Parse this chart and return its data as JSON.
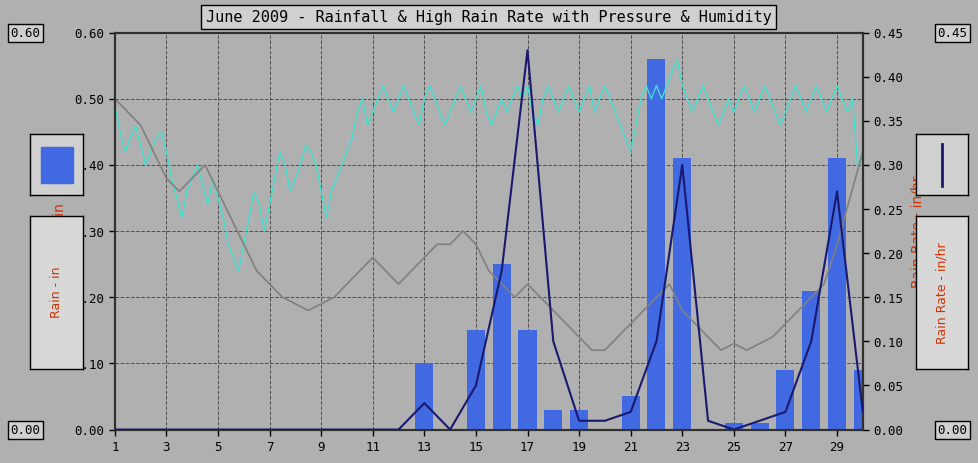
{
  "title": "June 2009 - Rainfall & High Rain Rate with Pressure & Humidity",
  "background_color": "#b0b0b0",
  "plot_bg_color": "#b0b0b0",
  "xlim": [
    1,
    30
  ],
  "ylim_left": [
    0.0,
    0.6
  ],
  "ylim_right": [
    0.0,
    0.45
  ],
  "left_yticks": [
    0.0,
    0.1,
    0.2,
    0.3,
    0.4,
    0.5,
    0.6
  ],
  "right_yticks": [
    0.0,
    0.05,
    0.1,
    0.15,
    0.2,
    0.25,
    0.3,
    0.35,
    0.4,
    0.45
  ],
  "xticks": [
    1,
    3,
    5,
    7,
    9,
    11,
    13,
    15,
    17,
    19,
    21,
    23,
    25,
    27,
    29
  ],
  "ylabel_left": "Rain - in",
  "ylabel_right": "Rain Rate - in/hr",
  "bar_color": "#4169e1",
  "line_rain_rate_color": "#191970",
  "humidity_color": "#40e0d0",
  "pressure_color": "#808080",
  "bar_x": [
    1,
    2,
    3,
    4,
    5,
    6,
    7,
    8,
    9,
    10,
    11,
    12,
    13,
    14,
    15,
    16,
    17,
    18,
    19,
    20,
    21,
    22,
    23,
    24,
    25,
    26,
    27,
    28,
    29,
    30
  ],
  "bar_heights": [
    0.0,
    0.0,
    0.0,
    0.0,
    0.0,
    0.0,
    0.0,
    0.0,
    0.0,
    0.0,
    0.0,
    0.0,
    0.1,
    0.0,
    0.15,
    0.25,
    0.15,
    0.03,
    0.03,
    0.0,
    0.05,
    0.56,
    0.41,
    0.0,
    0.01,
    0.01,
    0.09,
    0.21,
    0.41,
    0.09
  ],
  "rain_rate_x": [
    1,
    2,
    3,
    4,
    5,
    6,
    7,
    8,
    9,
    10,
    11,
    12,
    13,
    14,
    15,
    16,
    17,
    18,
    19,
    20,
    21,
    22,
    23,
    24,
    25,
    26,
    27,
    28,
    29,
    30
  ],
  "rain_rate_y": [
    0.0,
    0.0,
    0.0,
    0.0,
    0.0,
    0.0,
    0.0,
    0.0,
    0.0,
    0.0,
    0.0,
    0.0,
    0.03,
    0.0,
    0.05,
    0.18,
    0.43,
    0.1,
    0.01,
    0.01,
    0.02,
    0.1,
    0.3,
    0.01,
    0.0,
    0.01,
    0.02,
    0.1,
    0.27,
    0.02
  ],
  "humidity_x": [
    1.0,
    1.2,
    1.4,
    1.6,
    1.8,
    2.0,
    2.2,
    2.4,
    2.6,
    2.8,
    3.0,
    3.2,
    3.4,
    3.6,
    3.8,
    4.0,
    4.2,
    4.4,
    4.6,
    4.8,
    5.0,
    5.2,
    5.4,
    5.6,
    5.8,
    6.0,
    6.2,
    6.4,
    6.6,
    6.8,
    7.0,
    7.2,
    7.4,
    7.6,
    7.8,
    8.0,
    8.2,
    8.4,
    8.6,
    8.8,
    9.0,
    9.2,
    9.4,
    9.6,
    9.8,
    10.0,
    10.2,
    10.4,
    10.6,
    10.8,
    11.0,
    11.2,
    11.4,
    11.6,
    11.8,
    12.0,
    12.2,
    12.4,
    12.6,
    12.8,
    13.0,
    13.2,
    13.4,
    13.6,
    13.8,
    14.0,
    14.2,
    14.4,
    14.6,
    14.8,
    15.0,
    15.2,
    15.4,
    15.6,
    15.8,
    16.0,
    16.2,
    16.4,
    16.6,
    16.8,
    17.0,
    17.2,
    17.4,
    17.6,
    17.8,
    18.0,
    18.2,
    18.4,
    18.6,
    18.8,
    19.0,
    19.2,
    19.4,
    19.6,
    19.8,
    20.0,
    20.2,
    20.4,
    20.6,
    20.8,
    21.0,
    21.2,
    21.4,
    21.6,
    21.8,
    22.0,
    22.2,
    22.4,
    22.6,
    22.8,
    23.0,
    23.2,
    23.4,
    23.6,
    23.8,
    24.0,
    24.2,
    24.4,
    24.6,
    24.8,
    25.0,
    25.2,
    25.4,
    25.6,
    25.8,
    26.0,
    26.2,
    26.4,
    26.6,
    26.8,
    27.0,
    27.2,
    27.4,
    27.6,
    27.8,
    28.0,
    28.2,
    28.4,
    28.6,
    28.8,
    29.0,
    29.2,
    29.4,
    29.6,
    29.8,
    30.0
  ],
  "humidity_y": [
    0.49,
    0.45,
    0.42,
    0.44,
    0.46,
    0.43,
    0.4,
    0.42,
    0.44,
    0.45,
    0.42,
    0.38,
    0.35,
    0.32,
    0.36,
    0.38,
    0.4,
    0.37,
    0.34,
    0.38,
    0.35,
    0.32,
    0.28,
    0.26,
    0.24,
    0.28,
    0.32,
    0.36,
    0.34,
    0.3,
    0.34,
    0.38,
    0.42,
    0.4,
    0.36,
    0.38,
    0.4,
    0.43,
    0.42,
    0.4,
    0.36,
    0.32,
    0.36,
    0.38,
    0.4,
    0.42,
    0.44,
    0.48,
    0.5,
    0.46,
    0.48,
    0.5,
    0.52,
    0.5,
    0.48,
    0.5,
    0.52,
    0.5,
    0.48,
    0.46,
    0.5,
    0.52,
    0.5,
    0.48,
    0.46,
    0.48,
    0.5,
    0.52,
    0.5,
    0.48,
    0.5,
    0.52,
    0.48,
    0.46,
    0.48,
    0.5,
    0.48,
    0.5,
    0.52,
    0.5,
    0.52,
    0.48,
    0.46,
    0.5,
    0.52,
    0.5,
    0.48,
    0.5,
    0.52,
    0.5,
    0.48,
    0.5,
    0.52,
    0.48,
    0.5,
    0.52,
    0.5,
    0.48,
    0.46,
    0.44,
    0.42,
    0.46,
    0.5,
    0.52,
    0.5,
    0.52,
    0.5,
    0.52,
    0.54,
    0.56,
    0.52,
    0.5,
    0.48,
    0.5,
    0.52,
    0.5,
    0.48,
    0.46,
    0.48,
    0.5,
    0.48,
    0.5,
    0.52,
    0.5,
    0.48,
    0.5,
    0.52,
    0.5,
    0.48,
    0.46,
    0.48,
    0.5,
    0.52,
    0.5,
    0.48,
    0.5,
    0.52,
    0.5,
    0.48,
    0.5,
    0.52,
    0.5,
    0.48,
    0.5,
    0.4,
    0.42
  ],
  "pressure_x": [
    1.0,
    1.5,
    2.0,
    2.5,
    3.0,
    3.5,
    4.0,
    4.5,
    5.0,
    5.5,
    6.0,
    6.5,
    7.0,
    7.5,
    8.0,
    8.5,
    9.0,
    9.5,
    10.0,
    10.5,
    11.0,
    11.5,
    12.0,
    12.5,
    13.0,
    13.5,
    14.0,
    14.5,
    15.0,
    15.5,
    16.0,
    16.5,
    17.0,
    17.5,
    18.0,
    18.5,
    19.0,
    19.5,
    20.0,
    20.5,
    21.0,
    21.5,
    22.0,
    22.5,
    23.0,
    23.5,
    24.0,
    24.5,
    25.0,
    25.5,
    26.0,
    26.5,
    27.0,
    27.5,
    28.0,
    28.5,
    29.0,
    29.5,
    30.0
  ],
  "pressure_y": [
    0.5,
    0.48,
    0.46,
    0.42,
    0.38,
    0.36,
    0.38,
    0.4,
    0.36,
    0.32,
    0.28,
    0.24,
    0.22,
    0.2,
    0.19,
    0.18,
    0.19,
    0.2,
    0.22,
    0.24,
    0.26,
    0.24,
    0.22,
    0.24,
    0.26,
    0.28,
    0.28,
    0.3,
    0.28,
    0.24,
    0.22,
    0.2,
    0.22,
    0.2,
    0.18,
    0.16,
    0.14,
    0.12,
    0.12,
    0.14,
    0.16,
    0.18,
    0.2,
    0.22,
    0.18,
    0.16,
    0.14,
    0.12,
    0.13,
    0.12,
    0.13,
    0.14,
    0.16,
    0.18,
    0.2,
    0.22,
    0.28,
    0.35,
    0.42
  ]
}
